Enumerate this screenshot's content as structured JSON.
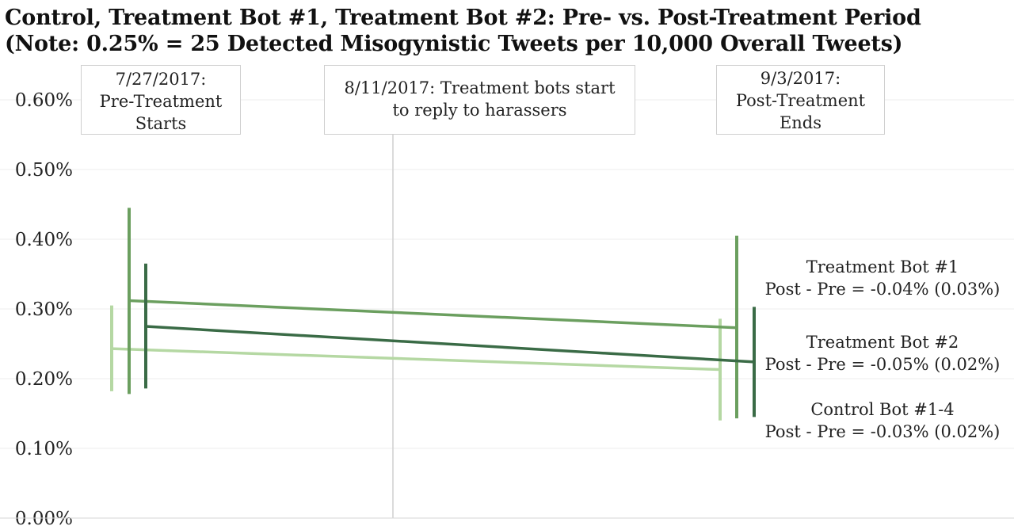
{
  "title_line1": "Control, Treatment Bot #1, Treatment Bot #2: Pre- vs. Post-Treatment Period",
  "title_line2": "(Note: 0.25% = 25 Detected Misogynistic Tweets per 10,000 Overall Tweets)",
  "annotations": {
    "pre_start": [
      "7/27/2017:",
      "Pre-Treatment",
      "Starts"
    ],
    "treatment": [
      "8/11/2017: Treatment bots start",
      "to reply to harassers"
    ],
    "post_end": [
      "9/3/2017:",
      "Post-Treatment",
      "Ends"
    ]
  },
  "series_labels": {
    "treatment1": [
      "Treatment Bot #1",
      "Post - Pre = -0.04% (0.03%)"
    ],
    "treatment2": [
      "Treatment Bot #2",
      "Post - Pre = -0.05% (0.02%)"
    ],
    "control": [
      "Control Bot #1-4",
      "Post - Pre = -0.03% (0.02%)"
    ]
  },
  "colors": {
    "treatment1": "#6b9f5f",
    "treatment2": "#3a6b46",
    "control": "#b5d8a3"
  },
  "chart_data": {
    "type": "line",
    "x": [
      "Pre",
      "Post"
    ],
    "ylim": [
      0,
      0.006
    ],
    "yticks": [
      0,
      0.001,
      0.002,
      0.003,
      0.004,
      0.005,
      0.006
    ],
    "ytick_labels": [
      "0.00%",
      "0.10%",
      "0.20%",
      "0.30%",
      "0.40%",
      "0.50%",
      "0.60%"
    ],
    "grid": true,
    "series": [
      {
        "key": "treatment1",
        "name": "Treatment Bot #1",
        "pre": {
          "value": 0.00312,
          "low": 0.00178,
          "high": 0.00445
        },
        "post": {
          "value": 0.00273,
          "low": 0.00143,
          "high": 0.00405
        }
      },
      {
        "key": "treatment2",
        "name": "Treatment Bot #2",
        "pre": {
          "value": 0.00275,
          "low": 0.00186,
          "high": 0.00365
        },
        "post": {
          "value": 0.00224,
          "low": 0.00145,
          "high": 0.00303
        }
      },
      {
        "key": "control",
        "name": "Control Bot #1-4",
        "pre": {
          "value": 0.00243,
          "low": 0.00182,
          "high": 0.00305
        },
        "post": {
          "value": 0.00213,
          "low": 0.0014,
          "high": 0.00286
        }
      }
    ]
  }
}
